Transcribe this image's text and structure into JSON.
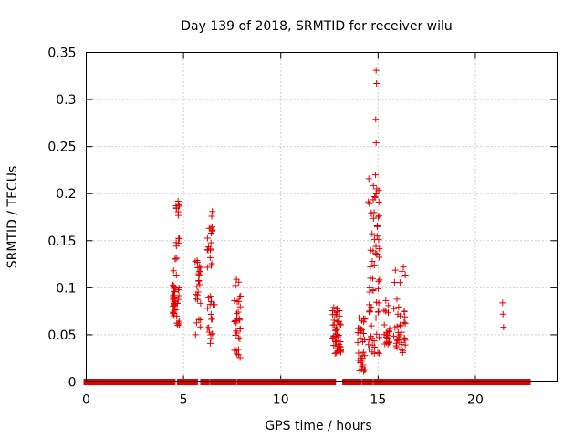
{
  "chart_data": {
    "type": "scatter",
    "title": "Day 139 of 2018, SRMTID for receiver wilu",
    "xlabel": "GPS time / hours",
    "ylabel": "SRMTID / TECUs",
    "xlim": [
      0,
      24.2
    ],
    "ylim": [
      0,
      0.35
    ],
    "xticks": [
      0,
      5,
      10,
      15,
      20
    ],
    "xtick_labels": [
      "0",
      "5",
      "10",
      "15",
      "20"
    ],
    "yticks": [
      0,
      0.05,
      0.1,
      0.15,
      0.2,
      0.25,
      0.3,
      0.35
    ],
    "ytick_labels": [
      "0",
      "0.05",
      "0.1",
      "0.15",
      "0.2",
      "0.25",
      "0.3",
      "0.35"
    ],
    "grid": true,
    "series": [
      {
        "name": "SRMTID",
        "color": "#e00000",
        "marker": "plus",
        "zero_segments": [
          [
            0,
            4.45
          ],
          [
            4.8,
            5.6
          ],
          [
            6.0,
            6.2
          ],
          [
            6.5,
            7.6
          ],
          [
            7.9,
            12.7
          ],
          [
            13.3,
            14.0
          ],
          [
            14.3,
            14.6
          ],
          [
            14.9,
            15.3
          ],
          [
            15.45,
            15.8
          ],
          [
            16.0,
            16.2
          ],
          [
            16.4,
            22.7
          ]
        ],
        "clusters": [
          {
            "x": [
              4.45,
              4.55
            ],
            "y": [
              0.07,
              0.12
            ],
            "n": 26
          },
          {
            "x": [
              4.55,
              4.8
            ],
            "y": [
              0.06,
              0.19
            ],
            "n": 30
          },
          {
            "x": [
              5.6,
              5.9
            ],
            "y": [
              0.05,
              0.13
            ],
            "n": 24
          },
          {
            "x": [
              6.2,
              6.5
            ],
            "y": [
              0.04,
              0.18
            ],
            "n": 30
          },
          {
            "x": [
              7.6,
              7.95
            ],
            "y": [
              0.025,
              0.11
            ],
            "n": 32
          },
          {
            "x": [
              12.65,
              13.1
            ],
            "y": [
              0.03,
              0.08
            ],
            "n": 50
          },
          {
            "x": [
              13.95,
              14.35
            ],
            "y": [
              0.01,
              0.07
            ],
            "n": 34
          },
          {
            "x": [
              14.5,
              15.1
            ],
            "y": [
              0.03,
              0.22
            ],
            "n": 60
          },
          {
            "x": [
              15.3,
              15.6
            ],
            "y": [
              0.04,
              0.09
            ],
            "n": 22
          },
          {
            "x": [
              15.8,
              16.4
            ],
            "y": [
              0.03,
              0.12
            ],
            "n": 40
          }
        ],
        "points": [
          [
            14.9,
            0.331
          ],
          [
            14.92,
            0.317
          ],
          [
            14.88,
            0.279
          ],
          [
            14.9,
            0.254
          ],
          [
            14.87,
            0.22
          ],
          [
            14.93,
            0.205
          ],
          [
            14.85,
            0.196
          ],
          [
            14.8,
            0.18
          ],
          [
            14.96,
            0.165
          ],
          [
            14.95,
            0.155
          ],
          [
            14.7,
            0.128
          ],
          [
            14.6,
            0.122
          ],
          [
            14.75,
            0.097
          ],
          [
            14.55,
            0.082
          ],
          [
            4.72,
            0.192
          ],
          [
            4.75,
            0.188
          ],
          [
            6.48,
            0.181
          ],
          [
            6.45,
            0.176
          ],
          [
            6.42,
            0.158
          ],
          [
            6.38,
            0.14
          ],
          [
            6.52,
            0.082
          ],
          [
            6.6,
            0.082
          ],
          [
            5.72,
            0.127
          ],
          [
            16.3,
            0.122
          ],
          [
            21.4,
            0.084
          ],
          [
            21.42,
            0.072
          ],
          [
            21.45,
            0.058
          ]
        ]
      }
    ]
  }
}
